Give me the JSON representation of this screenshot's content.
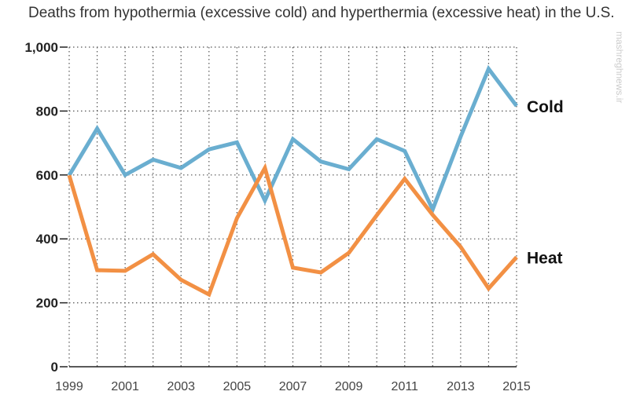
{
  "chart_data": {
    "type": "line",
    "title": "Deaths from hypothermia (excessive cold) and hyperthermia (excessive heat) in the U.S.",
    "x": [
      1999,
      2000,
      2001,
      2002,
      2003,
      2004,
      2005,
      2006,
      2007,
      2008,
      2009,
      2010,
      2011,
      2012,
      2013,
      2014,
      2015
    ],
    "x_tick_labels": [
      "1999",
      "2001",
      "2003",
      "2005",
      "2007",
      "2009",
      "2011",
      "2013",
      "2015"
    ],
    "y_tick_labels": [
      "0",
      "200",
      "400",
      "600",
      "800",
      "1,000"
    ],
    "ylim": [
      0,
      1000
    ],
    "xlim": [
      1999,
      2015
    ],
    "grid": "dotted",
    "legend": "direct labels at right end of lines",
    "series": [
      {
        "name": "Cold",
        "color": "#6aaed0",
        "values": [
          599,
          745,
          600,
          648,
          622,
          680,
          702,
          520,
          712,
          642,
          618,
          712,
          675,
          492,
          720,
          932,
          816
        ]
      },
      {
        "name": "Heat",
        "color": "#f29044",
        "values": [
          599,
          302,
          300,
          352,
          272,
          226,
          465,
          622,
          310,
          295,
          356,
          474,
          588,
          475,
          375,
          245,
          343
        ]
      }
    ],
    "watermark": "mashreghnews.ir"
  }
}
